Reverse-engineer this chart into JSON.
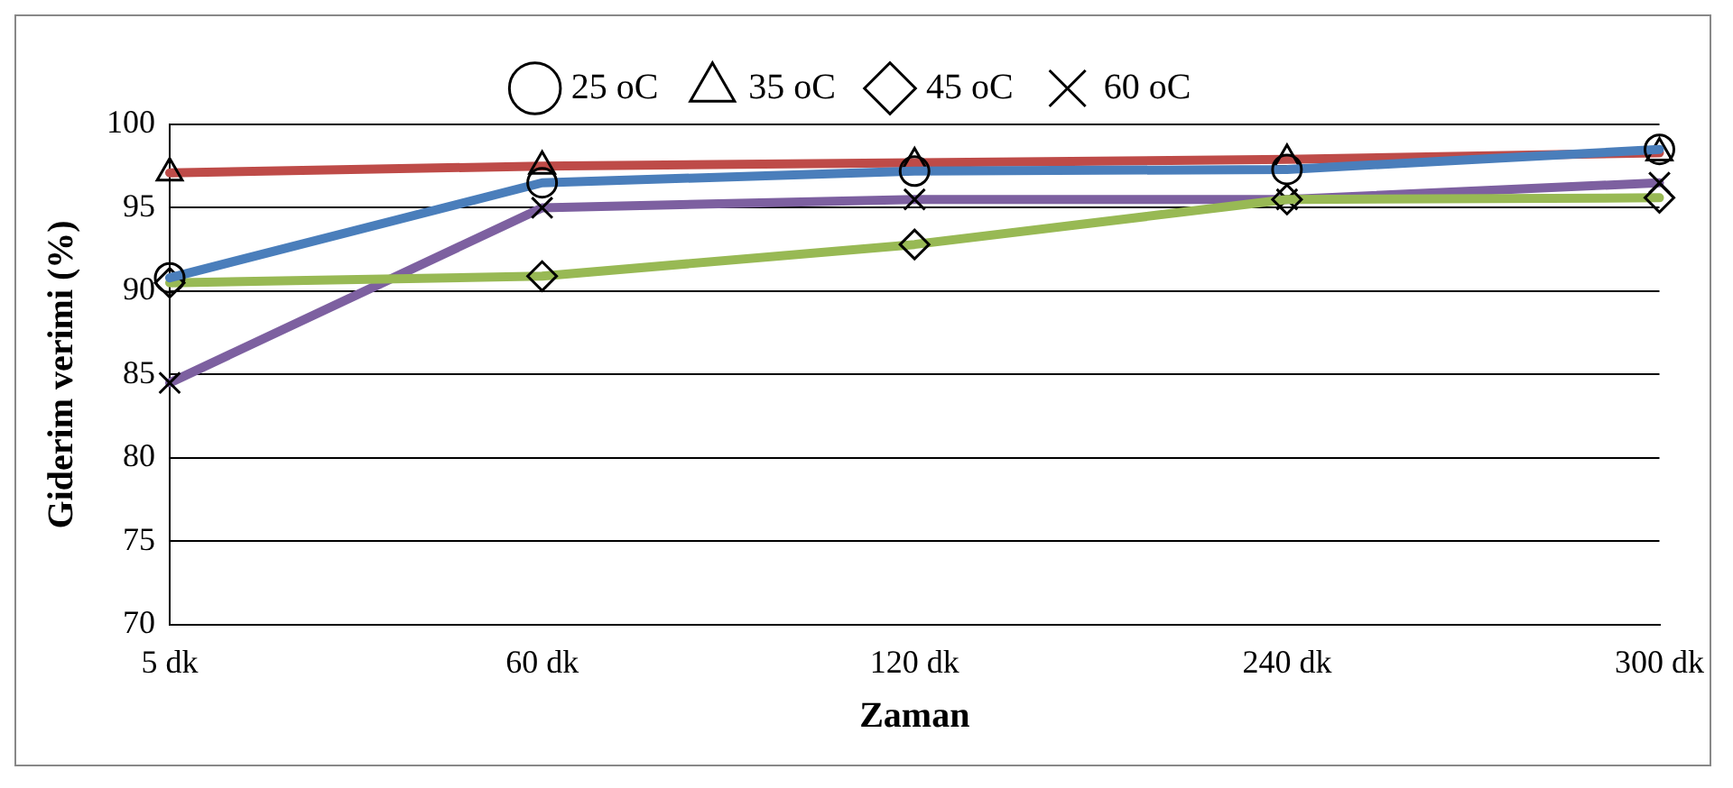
{
  "chart_data": {
    "type": "line",
    "xlabel": "Zaman",
    "ylabel": "Giderim verimi (%)",
    "categories": [
      "5 dk",
      "60 dk",
      "120 dk",
      "240 dk",
      "300 dk"
    ],
    "series": [
      {
        "name": "25 oC",
        "color": "#4a7ebb",
        "marker": "circle",
        "values": [
          90.8,
          96.5,
          97.2,
          97.3,
          98.5
        ]
      },
      {
        "name": "35 oC",
        "color": "#be4b48",
        "marker": "triangle",
        "values": [
          97.1,
          97.5,
          97.7,
          97.9,
          98.3
        ]
      },
      {
        "name": "45 oC",
        "color": "#98b954",
        "marker": "diamond",
        "values": [
          90.5,
          90.9,
          92.8,
          95.5,
          95.6
        ]
      },
      {
        "name": "60 oC",
        "color": "#7d60a0",
        "marker": "cross",
        "values": [
          84.5,
          95.0,
          95.5,
          95.5,
          96.5
        ]
      }
    ],
    "ylim": [
      70,
      100
    ],
    "yticks": [
      70,
      75,
      80,
      85,
      90,
      95,
      100
    ],
    "grid": "y",
    "legend": "top"
  }
}
